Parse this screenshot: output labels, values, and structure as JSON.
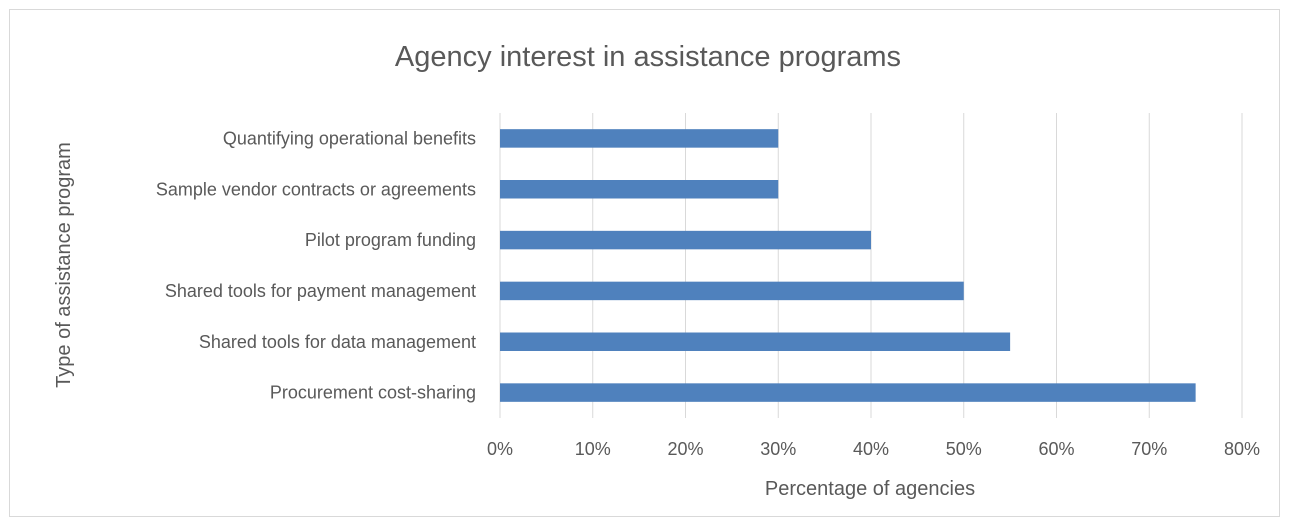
{
  "chart_data": {
    "type": "bar",
    "orientation": "horizontal",
    "title": "Agency interest in assistance programs",
    "xlabel": "Percentage of agencies",
    "ylabel": "Type of assistance program",
    "categories": [
      "Procurement cost-sharing",
      "Shared tools for data management",
      "Shared tools for payment management",
      "Pilot program funding",
      "Sample  vendor contracts or agreements",
      "Quantifying operational benefits"
    ],
    "values": [
      0.75,
      0.55,
      0.5,
      0.4,
      0.3,
      0.3
    ],
    "xlim": [
      0,
      0.8
    ],
    "xticks": [
      {
        "value": 0.0,
        "label": "0%"
      },
      {
        "value": 0.1,
        "label": "10%"
      },
      {
        "value": 0.2,
        "label": "20%"
      },
      {
        "value": 0.3,
        "label": "30%"
      },
      {
        "value": 0.4,
        "label": "40%"
      },
      {
        "value": 0.5,
        "label": "50%"
      },
      {
        "value": 0.6,
        "label": "60%"
      },
      {
        "value": 0.7,
        "label": "70%"
      },
      {
        "value": 0.8,
        "label": "80%"
      }
    ],
    "grid": "vertical",
    "legend": "none",
    "bar_color": "#4f81bd",
    "grid_color": "#d9d9d9",
    "text_color": "#595959"
  }
}
